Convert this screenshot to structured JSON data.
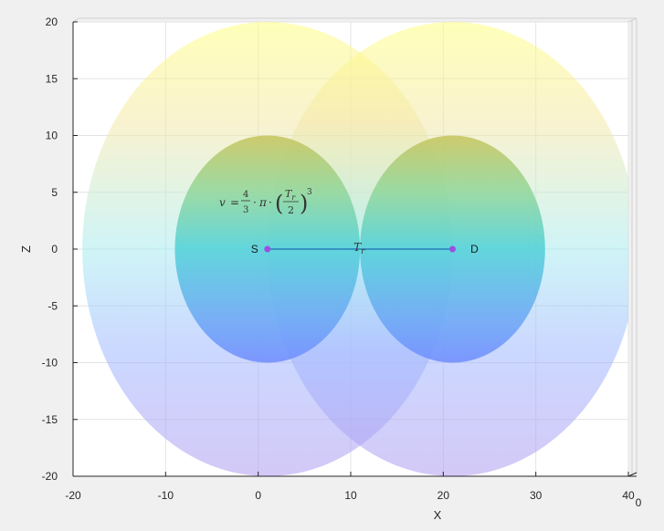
{
  "chart_data": {
    "type": "scatter",
    "title": "",
    "xlabel": "X",
    "ylabel": "Z",
    "xlim": [
      -20,
      40
    ],
    "ylim": [
      -20,
      20
    ],
    "xticks": [
      -20,
      -10,
      0,
      10,
      20,
      30,
      40
    ],
    "yticks": [
      -20,
      -15,
      -10,
      -5,
      0,
      5,
      10,
      15,
      20
    ],
    "extra_axis_tick": "0",
    "grid": true,
    "points": [
      {
        "name": "S",
        "x": 1,
        "z": 0
      },
      {
        "name": "D",
        "x": 21,
        "z": 0
      }
    ],
    "line_label": "T_r",
    "spheres": [
      {
        "id": "inner-s",
        "cx": 1,
        "cz": 0,
        "r": 10
      },
      {
        "id": "inner-d",
        "cx": 21,
        "cz": 0,
        "r": 10
      },
      {
        "id": "outer-s",
        "cx": 1,
        "cz": 0,
        "r": 20
      },
      {
        "id": "outer-d",
        "cx": 21,
        "cz": 0,
        "r": 20
      }
    ],
    "annotation": {
      "lhs": "v",
      "eq": "=",
      "frac_num": "4",
      "frac_den": "3",
      "dot": "·",
      "pi": "π",
      "paren_open": "(",
      "paren_close": ")",
      "inner_num_base": "T",
      "inner_num_sub": "r",
      "inner_den": "2",
      "power": "3"
    },
    "colors": {
      "point": "#9b4fe0",
      "segment": "#1f6fb0",
      "colormap": [
        "#7b7cf7",
        "#5cd6d6",
        "#c8d060",
        "#ffff88"
      ]
    }
  }
}
